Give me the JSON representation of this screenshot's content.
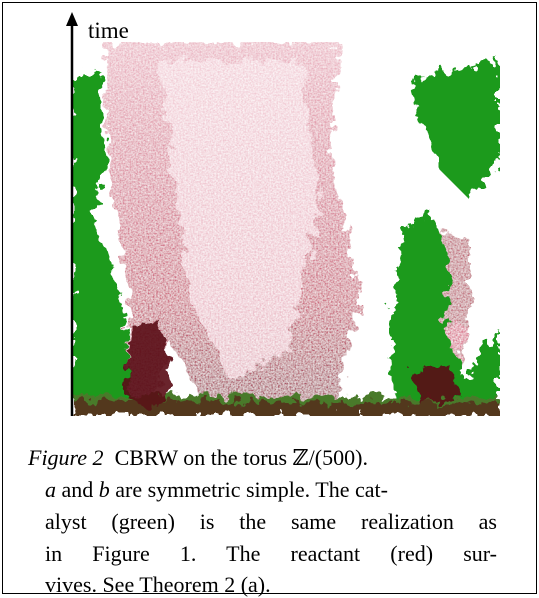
{
  "figure": {
    "axis_label": "time",
    "caption": {
      "label": "Figure 2",
      "lines": [
        [
          "CBRW on the torus ℤ/(500)."
        ],
        [
          "a",
          " and ",
          "b",
          " are symmetric simple. The cat-"
        ],
        [
          "alyst (green) is the same realization as"
        ],
        [
          "in Figure 1.  The reactant (red) sur-"
        ],
        [
          "vives. See Theorem 2 (a)."
        ]
      ]
    }
  }
}
